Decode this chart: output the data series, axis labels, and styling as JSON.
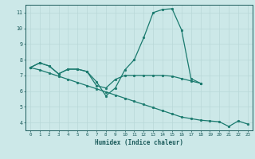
{
  "title": "",
  "xlabel": "Humidex (Indice chaleur)",
  "x_values": [
    0,
    1,
    2,
    3,
    4,
    5,
    6,
    7,
    8,
    9,
    10,
    11,
    12,
    13,
    14,
    15,
    16,
    17,
    18,
    19,
    20,
    21,
    22,
    23
  ],
  "line1_y": [
    7.5,
    7.8,
    7.6,
    7.1,
    7.4,
    7.4,
    7.25,
    6.6,
    5.7,
    6.2,
    7.35,
    8.0,
    9.4,
    11.0,
    11.2,
    11.25,
    9.9,
    6.8,
    6.5,
    null,
    null,
    null,
    null,
    null
  ],
  "line2_y": [
    7.5,
    7.8,
    7.6,
    7.1,
    7.4,
    7.4,
    7.25,
    6.35,
    6.2,
    6.75,
    7.0,
    7.0,
    7.0,
    7.0,
    7.0,
    6.95,
    6.8,
    6.65,
    6.5,
    null,
    null,
    null,
    null,
    null
  ],
  "line3_y": [
    7.5,
    7.35,
    7.15,
    6.95,
    6.75,
    6.55,
    6.35,
    6.15,
    5.95,
    5.75,
    5.55,
    5.35,
    5.15,
    4.95,
    4.75,
    4.55,
    4.35,
    4.25,
    4.15,
    4.1,
    4.05,
    3.75,
    4.1,
    3.9
  ],
  "ylim": [
    3.5,
    11.5
  ],
  "yticks": [
    4,
    5,
    6,
    7,
    8,
    9,
    10,
    11
  ],
  "xlim": [
    -0.5,
    23.5
  ],
  "bg_color": "#cce8e8",
  "grid_color": "#b8d8d8",
  "line_color": "#1a7a6e",
  "font_color": "#1a5a5a"
}
